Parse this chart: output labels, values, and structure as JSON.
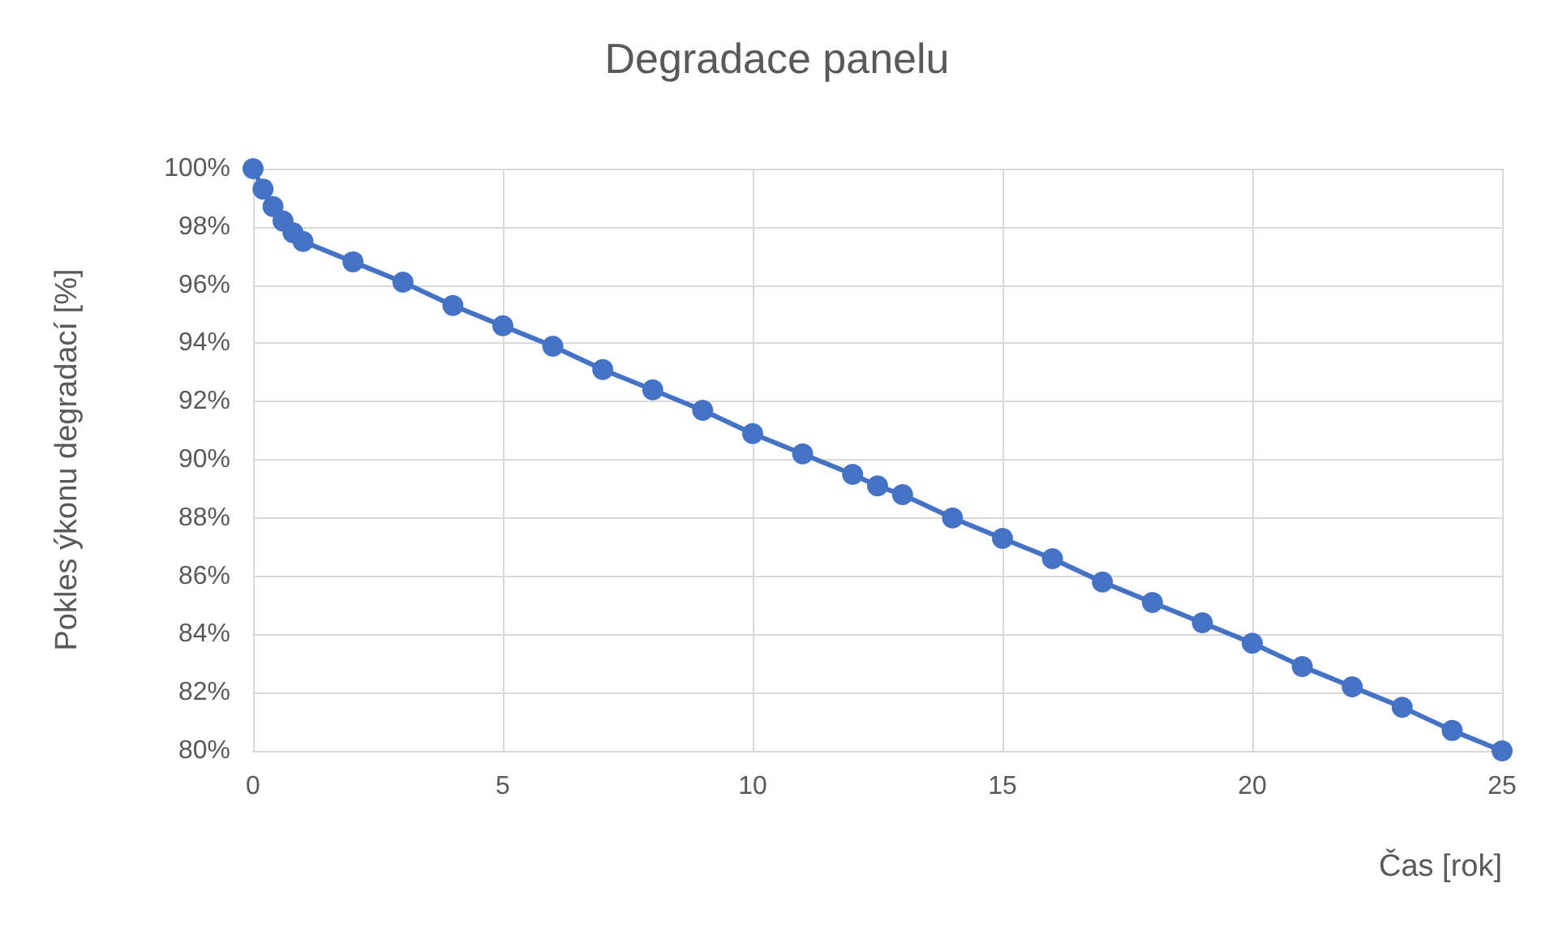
{
  "chart_data": {
    "type": "line",
    "title": "Degradace panelu",
    "xlabel": "Čas [rok]",
    "ylabel": "Pokles ýkonu degradací [%]",
    "x": [
      0,
      0.2,
      0.4,
      0.6,
      0.8,
      1,
      2,
      3,
      4,
      5,
      6,
      7,
      8,
      9,
      10,
      11,
      12,
      12.5,
      13,
      14,
      15,
      16,
      17,
      18,
      19,
      20,
      21,
      22,
      23,
      24,
      25
    ],
    "series": [
      {
        "color": "#4472c4",
        "values": [
          100,
          99.3,
          98.7,
          98.2,
          97.8,
          97.5,
          96.8,
          96.1,
          95.3,
          94.6,
          93.9,
          93.1,
          92.4,
          91.7,
          90.9,
          90.2,
          89.5,
          89.1,
          88.8,
          88.0,
          87.3,
          86.6,
          85.8,
          85.1,
          84.4,
          83.7,
          82.9,
          82.2,
          81.5,
          80.7,
          80
        ]
      }
    ],
    "xlim": [
      0,
      25
    ],
    "xticks": [
      0,
      5,
      10,
      15,
      20,
      25
    ],
    "ylim": [
      80,
      100
    ],
    "yticks": [
      {
        "value": 80,
        "label": "80%"
      },
      {
        "value": 82,
        "label": "82%"
      },
      {
        "value": 84,
        "label": "84%"
      },
      {
        "value": 86,
        "label": "86%"
      },
      {
        "value": 88,
        "label": "88%"
      },
      {
        "value": 90,
        "label": "90%"
      },
      {
        "value": 92,
        "label": "92%"
      },
      {
        "value": 94,
        "label": "94%"
      },
      {
        "value": 96,
        "label": "96%"
      },
      {
        "value": 98,
        "label": "98%"
      },
      {
        "value": 100,
        "label": "100%"
      }
    ],
    "grid": true,
    "marker": "circle",
    "line_style": "solid"
  }
}
